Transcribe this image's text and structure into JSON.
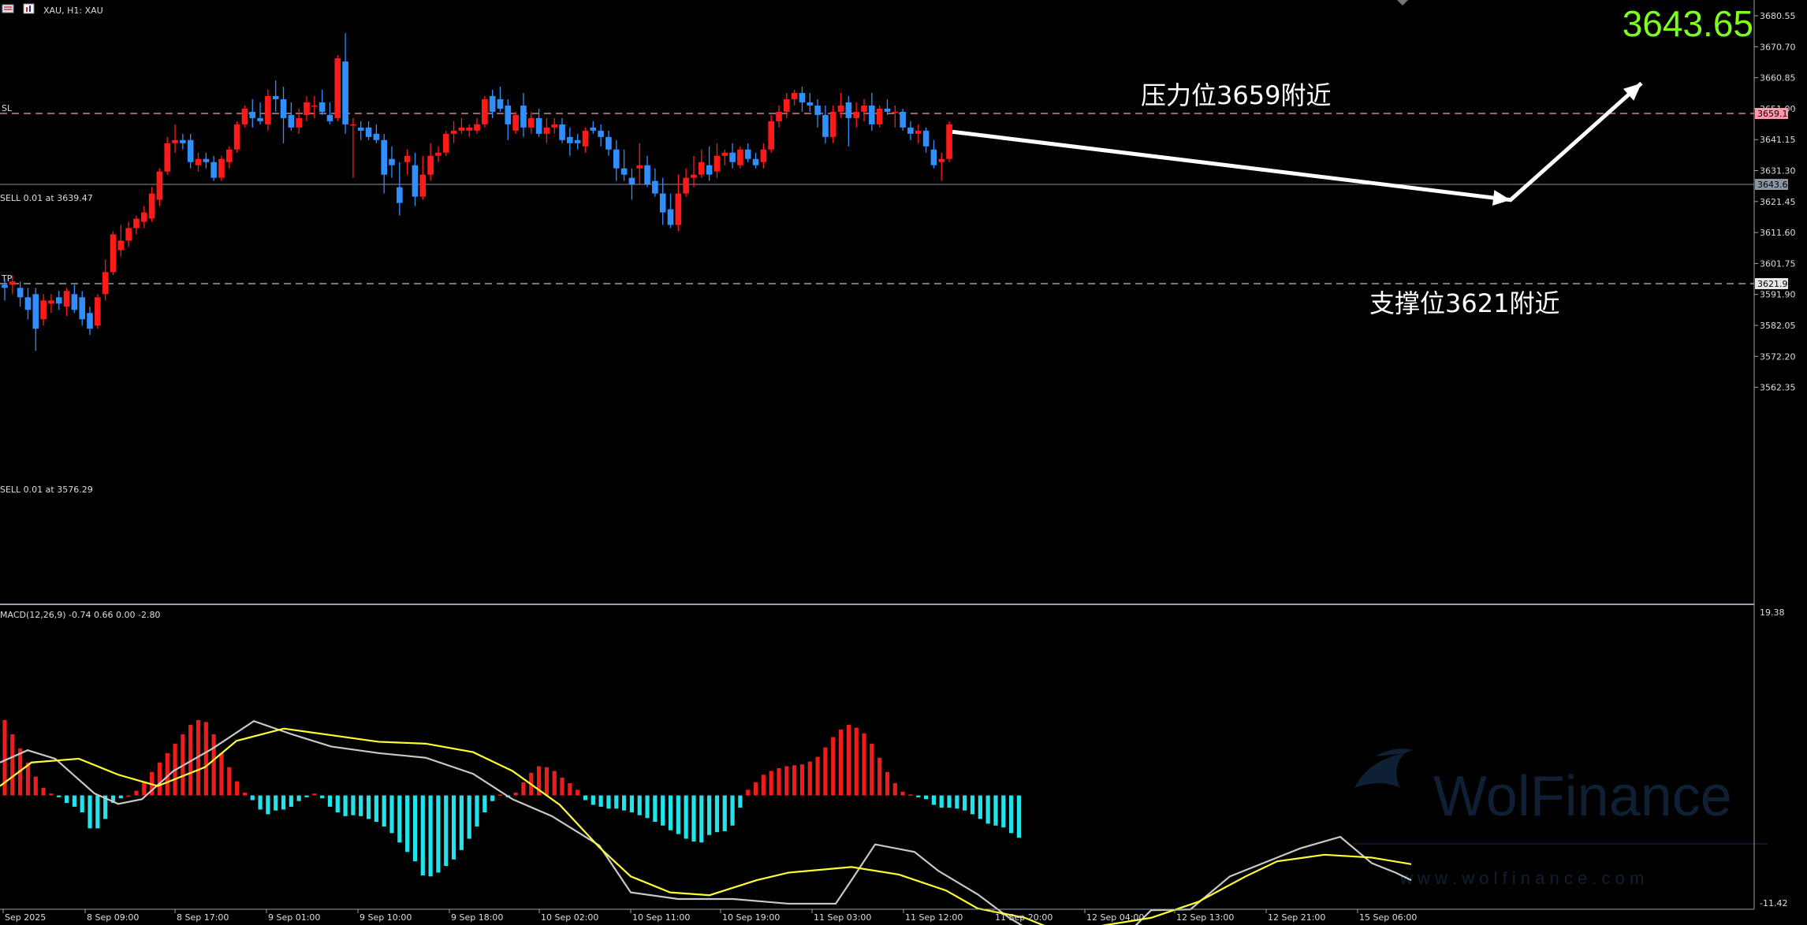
{
  "header": {
    "symbol_label": "XAU, H1:  XAU",
    "price_big": "3643.65"
  },
  "colors": {
    "bull": "#ff1a1a",
    "bear": "#2f8fff",
    "macd_pos": "#ee1c1c",
    "macd_neg": "#22e3ea",
    "macd_line": "#c8c8c8",
    "signal_line": "#ffff33",
    "price_big": "#7cff1e",
    "level": "#ff9aa8",
    "arrow": "#ffffff"
  },
  "annotations": {
    "resistance": "压力位3659附近",
    "support": "支撑位3621附近",
    "sl_label": "SL",
    "tp_label": "TP",
    "sell_order_1": "SELL 0.01 at 3639.47",
    "sell_order_2": "SELL 0.01 at 3576.29"
  },
  "price_axis": {
    "ticks": [
      "3680.55",
      "3670.70",
      "3660.85",
      "3651.00",
      "3641.15",
      "3631.30",
      "3621.45",
      "3611.60",
      "3601.75",
      "3591.90",
      "3582.05",
      "3572.20",
      "3562.35"
    ],
    "tag_sl": "3659.10",
    "tag_current": "3643.65",
    "tag_tp": "3621.97"
  },
  "macd_axis": {
    "title": "MACD(12,26,9) -0.74 0.66 0.00 -2.80",
    "top_label": "19.38",
    "bottom_label": "-11.42"
  },
  "time_axis": [
    "Sep 2025",
    "8 Sep 09:00",
    "8 Sep 17:00",
    "9 Sep 01:00",
    "9 Sep 10:00",
    "9 Sep 18:00",
    "10 Sep 02:00",
    "10 Sep 11:00",
    "10 Sep 19:00",
    "11 Sep 03:00",
    "11 Sep 12:00",
    "11 Sep 20:00",
    "12 Sep 04:00",
    "12 Sep 13:00",
    "12 Sep 21:00",
    "15 Sep 06:00"
  ],
  "watermark": {
    "brand": "WolFinance",
    "url": "w w w . w o l f i n a n c e . c o m"
  },
  "chart_data": {
    "type": "candlestick",
    "symbol": "XAU",
    "timeframe": "H1",
    "ylim": [
      3555,
      3682
    ],
    "levels": {
      "sl": 3659.1,
      "tp": 3621.97,
      "current": 3643.65
    },
    "forecast_path": [
      3643.65,
      3621.97,
      3659.1
    ],
    "candles": [
      [
        3595,
        3597,
        3590,
        3594
      ],
      [
        3595,
        3598,
        3592,
        3596
      ],
      [
        3594,
        3596,
        3588,
        3591
      ],
      [
        3591,
        3594,
        3584,
        3587
      ],
      [
        3592,
        3594,
        3574,
        3581
      ],
      [
        3584,
        3592,
        3582,
        3590
      ],
      [
        3589,
        3592,
        3586,
        3590
      ],
      [
        3591,
        3593,
        3587,
        3589
      ],
      [
        3588,
        3594,
        3585,
        3593
      ],
      [
        3592,
        3595,
        3586,
        3587
      ],
      [
        3591,
        3593,
        3582,
        3584
      ],
      [
        3586,
        3588,
        3579,
        3581
      ],
      [
        3582,
        3592,
        3581,
        3591
      ],
      [
        3592,
        3603,
        3590,
        3599
      ],
      [
        3599,
        3612,
        3598,
        3611
      ],
      [
        3606,
        3614,
        3604,
        3609
      ],
      [
        3609,
        3615,
        3607,
        3613
      ],
      [
        3613,
        3617,
        3611,
        3616
      ],
      [
        3615,
        3620,
        3613,
        3618
      ],
      [
        3616,
        3626,
        3615,
        3624
      ],
      [
        3622,
        3632,
        3620,
        3631
      ],
      [
        3631,
        3642,
        3630,
        3640
      ],
      [
        3640,
        3646,
        3637,
        3641
      ],
      [
        3641,
        3643,
        3638,
        3640
      ],
      [
        3641,
        3643,
        3632,
        3634
      ],
      [
        3633,
        3637,
        3631,
        3635
      ],
      [
        3635,
        3637,
        3632,
        3634
      ],
      [
        3634,
        3636,
        3628,
        3629
      ],
      [
        3629,
        3636,
        3628,
        3635
      ],
      [
        3634,
        3639,
        3632,
        3638
      ],
      [
        3638,
        3647,
        3637,
        3646
      ],
      [
        3646,
        3652,
        3645,
        3651
      ],
      [
        3650,
        3654,
        3645,
        3648
      ],
      [
        3648,
        3653,
        3646,
        3647
      ],
      [
        3646,
        3657,
        3644,
        3655
      ],
      [
        3655,
        3660,
        3650,
        3654
      ],
      [
        3654,
        3658,
        3640,
        3648
      ],
      [
        3649,
        3653,
        3644,
        3645
      ],
      [
        3645,
        3651,
        3643,
        3648
      ],
      [
        3649,
        3655,
        3647,
        3653
      ],
      [
        3652,
        3655,
        3648,
        3652
      ],
      [
        3653,
        3657,
        3649,
        3650
      ],
      [
        3649,
        3653,
        3646,
        3647
      ],
      [
        3648,
        3668,
        3647,
        3667
      ],
      [
        3666,
        3675,
        3643,
        3646
      ],
      [
        3646,
        3648,
        3629,
        3646
      ],
      [
        3645,
        3647,
        3641,
        3644
      ],
      [
        3645,
        3647,
        3641,
        3642
      ],
      [
        3643,
        3646,
        3640,
        3641
      ],
      [
        3641,
        3643,
        3624,
        3630
      ],
      [
        3635,
        3639,
        3629,
        3633
      ],
      [
        3626,
        3634,
        3617,
        3621
      ],
      [
        3634,
        3638,
        3630,
        3636
      ],
      [
        3633,
        3637,
        3620,
        3623
      ],
      [
        3623,
        3636,
        3622,
        3630
      ],
      [
        3630,
        3640,
        3628,
        3636
      ],
      [
        3636,
        3639,
        3634,
        3637
      ],
      [
        3637,
        3644,
        3636,
        3643
      ],
      [
        3643,
        3647,
        3640,
        3644
      ],
      [
        3644,
        3648,
        3643,
        3645
      ],
      [
        3644,
        3646,
        3642,
        3645
      ],
      [
        3644,
        3648,
        3643,
        3646
      ],
      [
        3646,
        3655,
        3645,
        3654
      ],
      [
        3655,
        3657,
        3648,
        3650
      ],
      [
        3654,
        3658,
        3650,
        3651
      ],
      [
        3652,
        3654,
        3641,
        3646
      ],
      [
        3644,
        3650,
        3643,
        3649
      ],
      [
        3652,
        3656,
        3642,
        3645
      ],
      [
        3645,
        3650,
        3643,
        3648
      ],
      [
        3648,
        3651,
        3642,
        3643
      ],
      [
        3643,
        3648,
        3640,
        3645
      ],
      [
        3645,
        3648,
        3643,
        3646
      ],
      [
        3646,
        3648,
        3640,
        3641
      ],
      [
        3642,
        3645,
        3636,
        3640
      ],
      [
        3641,
        3643,
        3638,
        3640
      ],
      [
        3639,
        3645,
        3637,
        3644
      ],
      [
        3645,
        3647,
        3643,
        3644
      ],
      [
        3644,
        3646,
        3639,
        3642
      ],
      [
        3642,
        3644,
        3636,
        3638
      ],
      [
        3638,
        3641,
        3628,
        3632
      ],
      [
        3632,
        3638,
        3628,
        3630
      ],
      [
        3629,
        3632,
        3622,
        3627
      ],
      [
        3632,
        3640,
        3627,
        3633
      ],
      [
        3633,
        3636,
        3626,
        3627
      ],
      [
        3628,
        3632,
        3623,
        3624
      ],
      [
        3624,
        3629,
        3614,
        3618
      ],
      [
        3619,
        3624,
        3613,
        3614
      ],
      [
        3614,
        3630,
        3612,
        3624
      ],
      [
        3624,
        3632,
        3623,
        3629
      ],
      [
        3629,
        3636,
        3626,
        3630
      ],
      [
        3630,
        3638,
        3629,
        3634
      ],
      [
        3633,
        3639,
        3628,
        3630
      ],
      [
        3631,
        3640,
        3629,
        3636
      ],
      [
        3636,
        3638,
        3633,
        3637
      ],
      [
        3637,
        3640,
        3632,
        3634
      ],
      [
        3633,
        3639,
        3632,
        3638
      ],
      [
        3638,
        3640,
        3634,
        3635
      ],
      [
        3635,
        3637,
        3632,
        3633
      ],
      [
        3634,
        3640,
        3632,
        3638
      ],
      [
        3638,
        3649,
        3637,
        3647
      ],
      [
        3647,
        3652,
        3645,
        3650
      ],
      [
        3650,
        3656,
        3648,
        3654
      ],
      [
        3654,
        3657,
        3652,
        3656
      ],
      [
        3656,
        3658,
        3650,
        3653
      ],
      [
        3653,
        3656,
        3650,
        3652
      ],
      [
        3652,
        3654,
        3645,
        3649
      ],
      [
        3649,
        3652,
        3640,
        3642
      ],
      [
        3642,
        3652,
        3640,
        3650
      ],
      [
        3650,
        3656,
        3648,
        3652
      ],
      [
        3653,
        3655,
        3639,
        3648
      ],
      [
        3648,
        3653,
        3645,
        3650
      ],
      [
        3650,
        3654,
        3647,
        3652
      ],
      [
        3652,
        3656,
        3644,
        3646
      ],
      [
        3646,
        3652,
        3645,
        3651
      ],
      [
        3651,
        3654,
        3649,
        3650
      ],
      [
        3650,
        3652,
        3645,
        3650
      ],
      [
        3650,
        3651,
        3644,
        3645
      ],
      [
        3645,
        3647,
        3641,
        3643
      ],
      [
        3643,
        3646,
        3640,
        3644
      ],
      [
        3644,
        3645,
        3637,
        3639
      ],
      [
        3638,
        3641,
        3632,
        3633
      ],
      [
        3634,
        3637,
        3628,
        3635
      ],
      [
        3635,
        3647,
        3634,
        3646
      ]
    ],
    "macd_hist": [
      8.0,
      6.5,
      5.0,
      3.5,
      2.0,
      0.8,
      0.2,
      -0.2,
      -0.8,
      -1.2,
      -1.8,
      -3.5,
      -3.5,
      -2.5,
      -0.8,
      -0.3,
      0,
      0.5,
      1.5,
      2.5,
      3.5,
      4.5,
      5.5,
      6.5,
      7.5,
      8.0,
      7.8,
      6.5,
      4.5,
      3.0,
      1.5,
      0.3,
      -0.5,
      -1.5,
      -2.0,
      -1.6,
      -1.5,
      -1.2,
      -0.6,
      -0.2,
      0.2,
      -0.3,
      -1.2,
      -1.8,
      -2.2,
      -2.1,
      -2.2,
      -2.5,
      -2.8,
      -3.3,
      -4.0,
      -5.0,
      -6.0,
      -7.0,
      -8.5,
      -8.6,
      -8.2,
      -7.5,
      -6.8,
      -5.8,
      -4.6,
      -3.3,
      -1.8,
      -0.6,
      0.1,
      -0.2,
      0.3,
      1.4,
      2.4,
      3.1,
      3.0,
      2.6,
      1.9,
      1.3,
      0.6,
      -0.5,
      -1.0,
      -1.2,
      -1.4,
      -1.4,
      -1.6,
      -1.8,
      -2.1,
      -2.4,
      -2.8,
      -3.2,
      -3.7,
      -4.1,
      -4.6,
      -4.9,
      -5.0,
      -4.2,
      -3.9,
      -3.8,
      -3.2,
      -1.3,
      0.6,
      1.4,
      2.2,
      2.6,
      2.9,
      3.1,
      3.2,
      3.3,
      3.6,
      4.1,
      5.1,
      6.2,
      7.0,
      7.5,
      7.2,
      6.6,
      5.5,
      4.0,
      2.5,
      1.3,
      0.4,
      0.1,
      -0.2,
      -0.4,
      -1.0,
      -1.3,
      -1.3,
      -1.4,
      -1.6,
      -2.0,
      -2.5,
      -3.0,
      -3.2,
      -3.4,
      -4.0,
      -4.5
    ],
    "macd_line_pts": [
      [
        0,
        3.5
      ],
      [
        35,
        4.8
      ],
      [
        70,
        3.9
      ],
      [
        120,
        0.2
      ],
      [
        150,
        -0.9
      ],
      [
        180,
        -0.4
      ],
      [
        220,
        2.6
      ],
      [
        270,
        5.0
      ],
      [
        322,
        7.9
      ],
      [
        370,
        6.5
      ],
      [
        420,
        5.2
      ],
      [
        480,
        4.5
      ],
      [
        540,
        4.0
      ],
      [
        600,
        2.3
      ],
      [
        650,
        -0.4
      ],
      [
        700,
        -2.2
      ],
      [
        760,
        -5.3
      ],
      [
        800,
        -10.3
      ],
      [
        860,
        -11.0
      ],
      [
        930,
        -11.0
      ],
      [
        1000,
        -11.5
      ],
      [
        1060,
        -11.5
      ],
      [
        1080,
        -9.0
      ],
      [
        1110,
        -5.2
      ],
      [
        1160,
        -6.0
      ],
      [
        1190,
        -8.0
      ],
      [
        1240,
        -10.5
      ],
      [
        1280,
        -13.0
      ],
      [
        1330,
        -15.5
      ],
      [
        1370,
        -16.5
      ],
      [
        1420,
        -15.5
      ],
      [
        1460,
        -12.2
      ],
      [
        1510,
        -12.1
      ],
      [
        1560,
        -8.6
      ],
      [
        1620,
        -6.6
      ],
      [
        1650,
        -5.6
      ],
      [
        1700,
        -4.4
      ],
      [
        1740,
        -7.2
      ],
      [
        1770,
        -8.2
      ],
      [
        1790,
        -9.0
      ]
    ],
    "signal_pts": [
      [
        0,
        1.0
      ],
      [
        40,
        3.5
      ],
      [
        100,
        3.9
      ],
      [
        150,
        2.2
      ],
      [
        200,
        1.0
      ],
      [
        260,
        3.0
      ],
      [
        300,
        5.8
      ],
      [
        360,
        7.1
      ],
      [
        420,
        6.4
      ],
      [
        480,
        5.7
      ],
      [
        540,
        5.5
      ],
      [
        600,
        4.6
      ],
      [
        650,
        2.6
      ],
      [
        710,
        -1.0
      ],
      [
        760,
        -5.5
      ],
      [
        800,
        -8.6
      ],
      [
        850,
        -10.3
      ],
      [
        900,
        -10.6
      ],
      [
        960,
        -9.0
      ],
      [
        1000,
        -8.2
      ],
      [
        1080,
        -7.6
      ],
      [
        1140,
        -8.4
      ],
      [
        1200,
        -10.1
      ],
      [
        1240,
        -12.0
      ],
      [
        1300,
        -13.0
      ],
      [
        1350,
        -14.7
      ],
      [
        1400,
        -13.8
      ],
      [
        1460,
        -13.0
      ],
      [
        1520,
        -11.3
      ],
      [
        1580,
        -8.6
      ],
      [
        1620,
        -7.0
      ],
      [
        1680,
        -6.3
      ],
      [
        1740,
        -6.6
      ],
      [
        1790,
        -7.3
      ]
    ]
  }
}
